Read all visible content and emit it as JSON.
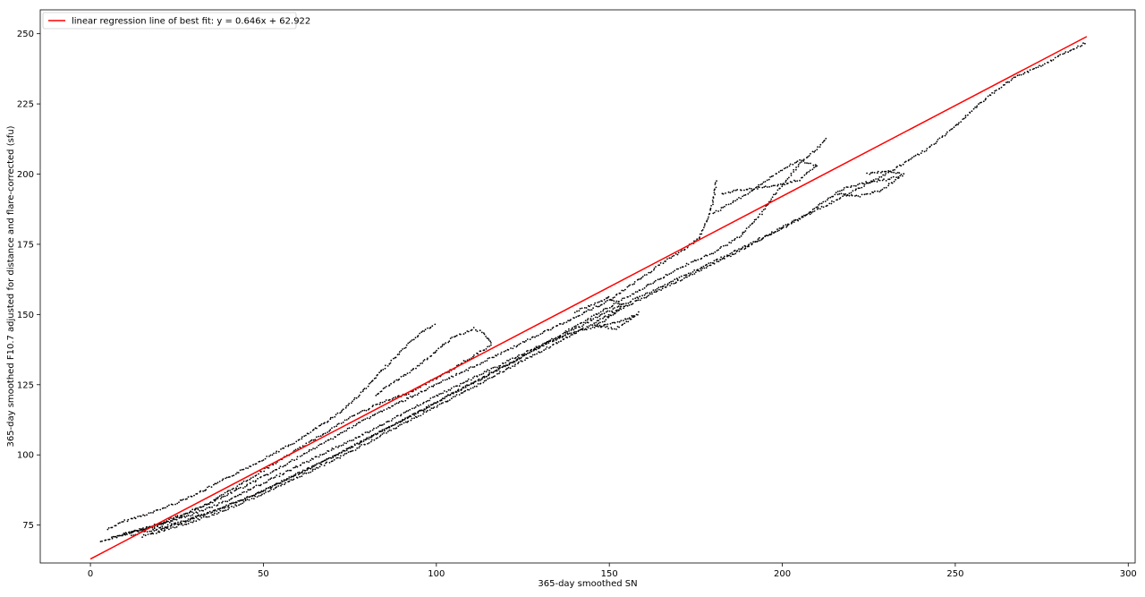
{
  "chart_data": {
    "type": "scatter",
    "title": "",
    "xlabel": "365-day smoothed SN",
    "ylabel": "365-day smoothed F10.7 adjusted for distance and flare-corrected (sfu)",
    "xlim": [
      -14.5,
      302
    ],
    "ylim": [
      61.5,
      258.5
    ],
    "x_ticks": [
      0,
      50,
      100,
      150,
      200,
      250,
      300
    ],
    "y_ticks": [
      75,
      100,
      125,
      150,
      175,
      200,
      225,
      250
    ],
    "grid": false,
    "legend_position": "upper-left",
    "legend": [
      {
        "label": "linear regression line of best fit: y = 0.646x + 62.922",
        "color": "#ff0000",
        "kind": "line"
      }
    ],
    "regression": {
      "slope": 0.646,
      "intercept": 62.922,
      "x_range": [
        0,
        288
      ],
      "color": "#ff0000"
    },
    "series": [
      {
        "kind": "scatter-trajectory",
        "color": "#000000",
        "points": [
          [
            5,
            73.5
          ],
          [
            10,
            76.5
          ],
          [
            18,
            79.5
          ],
          [
            26,
            83.5
          ],
          [
            33,
            87.5
          ],
          [
            40,
            92
          ],
          [
            47,
            96.5
          ],
          [
            53,
            100.5
          ],
          [
            60,
            105
          ],
          [
            66,
            110
          ],
          [
            72,
            115
          ],
          [
            77,
            120.5
          ],
          [
            81,
            125.5
          ],
          [
            85,
            131
          ],
          [
            88,
            134.5
          ],
          [
            92,
            139.5
          ],
          [
            96,
            144
          ],
          [
            100,
            146.5
          ]
        ]
      },
      {
        "kind": "scatter-trajectory",
        "color": "#000000",
        "points": [
          [
            3,
            69
          ],
          [
            8,
            71
          ],
          [
            14,
            73
          ],
          [
            20,
            75
          ],
          [
            28,
            79
          ],
          [
            36,
            84
          ],
          [
            44,
            90
          ],
          [
            52,
            96
          ],
          [
            60,
            102
          ],
          [
            68,
            108
          ],
          [
            76,
            114
          ],
          [
            84,
            118.5
          ],
          [
            92,
            122
          ],
          [
            98,
            126
          ],
          [
            104,
            130
          ],
          [
            109,
            134
          ],
          [
            113,
            137
          ],
          [
            116,
            139
          ],
          [
            114,
            143
          ],
          [
            111,
            145
          ],
          [
            105,
            142
          ],
          [
            99,
            136
          ],
          [
            94,
            131
          ],
          [
            88,
            126
          ],
          [
            82,
            121
          ]
        ]
      },
      {
        "kind": "scatter-trajectory",
        "color": "#000000",
        "points": [
          [
            6,
            70.5
          ],
          [
            12,
            72.5
          ],
          [
            20,
            75.5
          ],
          [
            28,
            79.5
          ],
          [
            36,
            83.5
          ],
          [
            44,
            88.5
          ],
          [
            52,
            93.5
          ],
          [
            60,
            99
          ],
          [
            70,
            106
          ],
          [
            80,
            113
          ],
          [
            90,
            119
          ],
          [
            100,
            125
          ],
          [
            110,
            131
          ],
          [
            120,
            137
          ],
          [
            130,
            143
          ],
          [
            140,
            149
          ],
          [
            150,
            155
          ],
          [
            158,
            162
          ],
          [
            165,
            168
          ],
          [
            172,
            173.5
          ],
          [
            176,
            177
          ],
          [
            178,
            183
          ],
          [
            180,
            190
          ],
          [
            181,
            198
          ]
        ]
      },
      {
        "kind": "scatter-trajectory",
        "color": "#000000",
        "points": [
          [
            10,
            72
          ],
          [
            20,
            75
          ],
          [
            30,
            79
          ],
          [
            40,
            84
          ],
          [
            50,
            90
          ],
          [
            60,
            96
          ],
          [
            70,
            102
          ],
          [
            80,
            108
          ],
          [
            90,
            114.5
          ],
          [
            100,
            121
          ],
          [
            110,
            127
          ],
          [
            120,
            133
          ],
          [
            130,
            139
          ],
          [
            140,
            144
          ],
          [
            148,
            146
          ],
          [
            154,
            148
          ],
          [
            158,
            150
          ]
        ]
      },
      {
        "kind": "scatter-trajectory",
        "color": "#000000",
        "points": [
          [
            12,
            71.5
          ],
          [
            22,
            74.5
          ],
          [
            32,
            78.5
          ],
          [
            42,
            83
          ],
          [
            52,
            88.5
          ],
          [
            62,
            94.5
          ],
          [
            72,
            100.5
          ],
          [
            82,
            107
          ],
          [
            92,
            113.5
          ],
          [
            102,
            120
          ],
          [
            112,
            126.5
          ],
          [
            122,
            133
          ],
          [
            132,
            140
          ],
          [
            142,
            147
          ],
          [
            152,
            154
          ],
          [
            162,
            161
          ],
          [
            172,
            167.5
          ],
          [
            180,
            172
          ],
          [
            188,
            178
          ],
          [
            194,
            186
          ],
          [
            198,
            193
          ],
          [
            202,
            199
          ],
          [
            206,
            205
          ],
          [
            210,
            209
          ],
          [
            213,
            213
          ]
        ]
      },
      {
        "kind": "scatter-trajectory",
        "color": "#000000",
        "points": [
          [
            15,
            71
          ],
          [
            25,
            74.5
          ],
          [
            35,
            78.5
          ],
          [
            45,
            83.5
          ],
          [
            55,
            89
          ],
          [
            65,
            95
          ],
          [
            75,
            101
          ],
          [
            85,
            107.5
          ],
          [
            95,
            114
          ],
          [
            105,
            120.5
          ],
          [
            115,
            127
          ],
          [
            125,
            133.5
          ],
          [
            135,
            140
          ],
          [
            145,
            146.5
          ],
          [
            155,
            153
          ],
          [
            165,
            159
          ],
          [
            175,
            165
          ],
          [
            185,
            171
          ],
          [
            195,
            177.5
          ],
          [
            205,
            184
          ],
          [
            212,
            190
          ],
          [
            218,
            195
          ],
          [
            224,
            197
          ],
          [
            230,
            198
          ],
          [
            234,
            199.5
          ]
        ]
      },
      {
        "kind": "scatter-trajectory",
        "color": "#000000",
        "points": [
          [
            18,
            72.5
          ],
          [
            28,
            76.5
          ],
          [
            38,
            81
          ],
          [
            48,
            86
          ],
          [
            58,
            92
          ],
          [
            68,
            98
          ],
          [
            78,
            104.5
          ],
          [
            88,
            111
          ],
          [
            98,
            117.5
          ],
          [
            108,
            124
          ],
          [
            118,
            130.5
          ],
          [
            128,
            137
          ],
          [
            138,
            143.5
          ],
          [
            148,
            150
          ],
          [
            160,
            157
          ],
          [
            172,
            164
          ],
          [
            184,
            171
          ],
          [
            196,
            178.5
          ],
          [
            208,
            186
          ],
          [
            220,
            193.5
          ],
          [
            232,
            201.5
          ],
          [
            242,
            209
          ],
          [
            250,
            217
          ],
          [
            256,
            224
          ],
          [
            262,
            230
          ],
          [
            268,
            235
          ],
          [
            274,
            238
          ],
          [
            280,
            242
          ],
          [
            285,
            245
          ],
          [
            288,
            247
          ]
        ]
      },
      {
        "kind": "scatter-trajectory",
        "color": "#000000",
        "points": [
          [
            180,
            186
          ],
          [
            190,
            193
          ],
          [
            198,
            200
          ],
          [
            205,
            205
          ],
          [
            210,
            203
          ],
          [
            205,
            198
          ],
          [
            199,
            196
          ],
          [
            193,
            195
          ],
          [
            186,
            194
          ],
          [
            182,
            193
          ]
        ]
      },
      {
        "kind": "scatter-trajectory",
        "color": "#000000",
        "points": [
          [
            140,
            151
          ],
          [
            146,
            154
          ],
          [
            150,
            156
          ],
          [
            154,
            153
          ],
          [
            150,
            149
          ],
          [
            146,
            146
          ],
          [
            152,
            145
          ],
          [
            156,
            148
          ],
          [
            159,
            151
          ]
        ]
      },
      {
        "kind": "scatter-trajectory",
        "color": "#000000",
        "points": [
          [
            216,
            193
          ],
          [
            222,
            192
          ],
          [
            228,
            194
          ],
          [
            232,
            197
          ],
          [
            235,
            200
          ],
          [
            230,
            201
          ],
          [
            224,
            200
          ]
        ]
      }
    ]
  }
}
